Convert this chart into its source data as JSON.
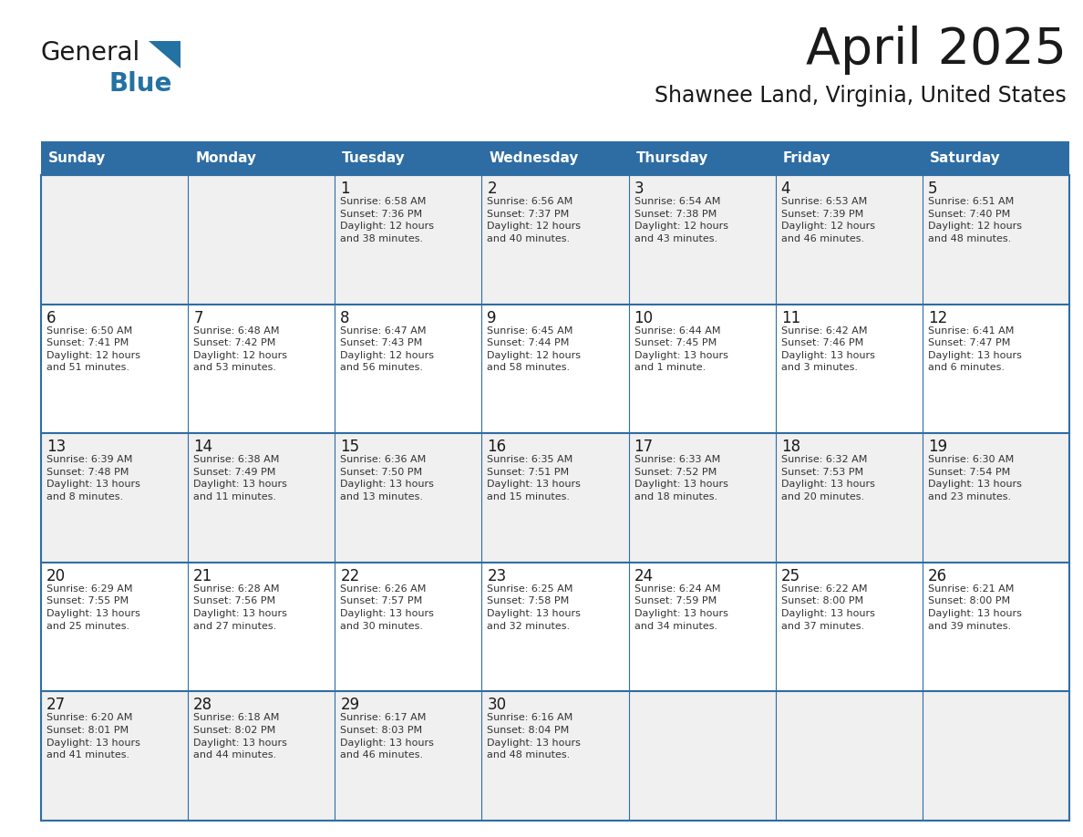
{
  "title": "April 2025",
  "subtitle": "Shawnee Land, Virginia, United States",
  "header_bg_color": "#2E6DA4",
  "header_text_color": "#FFFFFF",
  "cell_bg_odd": "#F0F0F0",
  "cell_bg_even": "#FFFFFF",
  "grid_line_color": "#2E6DA4",
  "day_number_color": "#1a1a1a",
  "cell_text_color": "#333333",
  "days_of_week": [
    "Sunday",
    "Monday",
    "Tuesday",
    "Wednesday",
    "Thursday",
    "Friday",
    "Saturday"
  ],
  "calendar": [
    [
      {
        "day": "",
        "text": ""
      },
      {
        "day": "",
        "text": ""
      },
      {
        "day": "1",
        "text": "Sunrise: 6:58 AM\nSunset: 7:36 PM\nDaylight: 12 hours\nand 38 minutes."
      },
      {
        "day": "2",
        "text": "Sunrise: 6:56 AM\nSunset: 7:37 PM\nDaylight: 12 hours\nand 40 minutes."
      },
      {
        "day": "3",
        "text": "Sunrise: 6:54 AM\nSunset: 7:38 PM\nDaylight: 12 hours\nand 43 minutes."
      },
      {
        "day": "4",
        "text": "Sunrise: 6:53 AM\nSunset: 7:39 PM\nDaylight: 12 hours\nand 46 minutes."
      },
      {
        "day": "5",
        "text": "Sunrise: 6:51 AM\nSunset: 7:40 PM\nDaylight: 12 hours\nand 48 minutes."
      }
    ],
    [
      {
        "day": "6",
        "text": "Sunrise: 6:50 AM\nSunset: 7:41 PM\nDaylight: 12 hours\nand 51 minutes."
      },
      {
        "day": "7",
        "text": "Sunrise: 6:48 AM\nSunset: 7:42 PM\nDaylight: 12 hours\nand 53 minutes."
      },
      {
        "day": "8",
        "text": "Sunrise: 6:47 AM\nSunset: 7:43 PM\nDaylight: 12 hours\nand 56 minutes."
      },
      {
        "day": "9",
        "text": "Sunrise: 6:45 AM\nSunset: 7:44 PM\nDaylight: 12 hours\nand 58 minutes."
      },
      {
        "day": "10",
        "text": "Sunrise: 6:44 AM\nSunset: 7:45 PM\nDaylight: 13 hours\nand 1 minute."
      },
      {
        "day": "11",
        "text": "Sunrise: 6:42 AM\nSunset: 7:46 PM\nDaylight: 13 hours\nand 3 minutes."
      },
      {
        "day": "12",
        "text": "Sunrise: 6:41 AM\nSunset: 7:47 PM\nDaylight: 13 hours\nand 6 minutes."
      }
    ],
    [
      {
        "day": "13",
        "text": "Sunrise: 6:39 AM\nSunset: 7:48 PM\nDaylight: 13 hours\nand 8 minutes."
      },
      {
        "day": "14",
        "text": "Sunrise: 6:38 AM\nSunset: 7:49 PM\nDaylight: 13 hours\nand 11 minutes."
      },
      {
        "day": "15",
        "text": "Sunrise: 6:36 AM\nSunset: 7:50 PM\nDaylight: 13 hours\nand 13 minutes."
      },
      {
        "day": "16",
        "text": "Sunrise: 6:35 AM\nSunset: 7:51 PM\nDaylight: 13 hours\nand 15 minutes."
      },
      {
        "day": "17",
        "text": "Sunrise: 6:33 AM\nSunset: 7:52 PM\nDaylight: 13 hours\nand 18 minutes."
      },
      {
        "day": "18",
        "text": "Sunrise: 6:32 AM\nSunset: 7:53 PM\nDaylight: 13 hours\nand 20 minutes."
      },
      {
        "day": "19",
        "text": "Sunrise: 6:30 AM\nSunset: 7:54 PM\nDaylight: 13 hours\nand 23 minutes."
      }
    ],
    [
      {
        "day": "20",
        "text": "Sunrise: 6:29 AM\nSunset: 7:55 PM\nDaylight: 13 hours\nand 25 minutes."
      },
      {
        "day": "21",
        "text": "Sunrise: 6:28 AM\nSunset: 7:56 PM\nDaylight: 13 hours\nand 27 minutes."
      },
      {
        "day": "22",
        "text": "Sunrise: 6:26 AM\nSunset: 7:57 PM\nDaylight: 13 hours\nand 30 minutes."
      },
      {
        "day": "23",
        "text": "Sunrise: 6:25 AM\nSunset: 7:58 PM\nDaylight: 13 hours\nand 32 minutes."
      },
      {
        "day": "24",
        "text": "Sunrise: 6:24 AM\nSunset: 7:59 PM\nDaylight: 13 hours\nand 34 minutes."
      },
      {
        "day": "25",
        "text": "Sunrise: 6:22 AM\nSunset: 8:00 PM\nDaylight: 13 hours\nand 37 minutes."
      },
      {
        "day": "26",
        "text": "Sunrise: 6:21 AM\nSunset: 8:00 PM\nDaylight: 13 hours\nand 39 minutes."
      }
    ],
    [
      {
        "day": "27",
        "text": "Sunrise: 6:20 AM\nSunset: 8:01 PM\nDaylight: 13 hours\nand 41 minutes."
      },
      {
        "day": "28",
        "text": "Sunrise: 6:18 AM\nSunset: 8:02 PM\nDaylight: 13 hours\nand 44 minutes."
      },
      {
        "day": "29",
        "text": "Sunrise: 6:17 AM\nSunset: 8:03 PM\nDaylight: 13 hours\nand 46 minutes."
      },
      {
        "day": "30",
        "text": "Sunrise: 6:16 AM\nSunset: 8:04 PM\nDaylight: 13 hours\nand 48 minutes."
      },
      {
        "day": "",
        "text": ""
      },
      {
        "day": "",
        "text": ""
      },
      {
        "day": "",
        "text": ""
      }
    ]
  ],
  "logo_text_color": "#1a1a1a",
  "logo_blue_color": "#2471A3",
  "figsize": [
    11.88,
    9.18
  ],
  "dpi": 100
}
